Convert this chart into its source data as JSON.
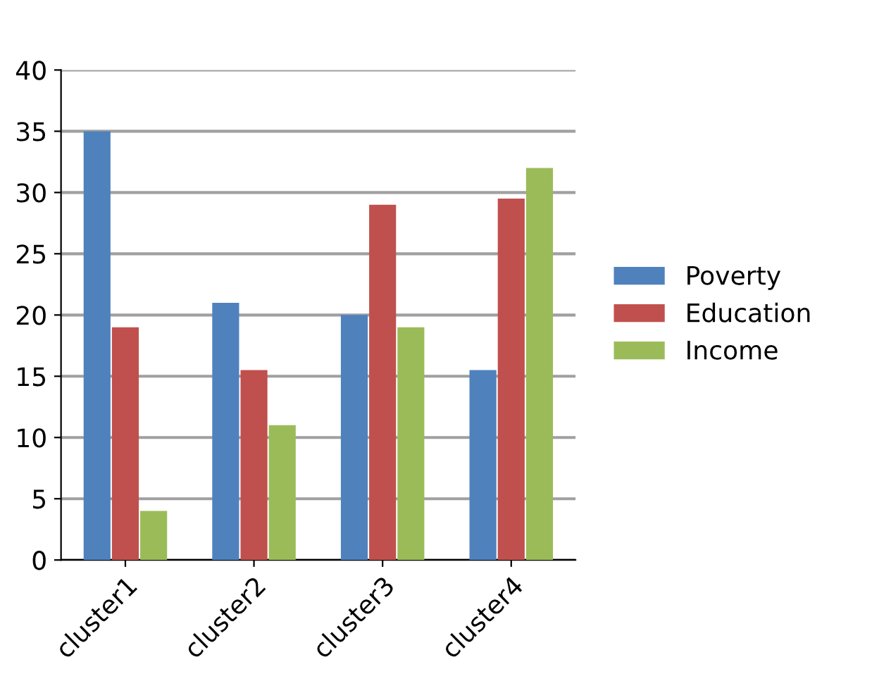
{
  "chart_data": {
    "type": "bar",
    "categories": [
      "cluster1",
      "cluster2",
      "cluster3",
      "cluster4"
    ],
    "series": [
      {
        "name": "Poverty",
        "color": "#4f81bd",
        "values": [
          35,
          21,
          20,
          15.5
        ]
      },
      {
        "name": "Education",
        "color": "#c0504d",
        "values": [
          19,
          15.5,
          29,
          29.5
        ]
      },
      {
        "name": "Income",
        "color": "#9bbb59",
        "values": [
          4,
          11,
          19,
          32
        ]
      }
    ],
    "ylim": [
      0,
      40
    ],
    "yticks": [
      0,
      5,
      10,
      15,
      20,
      25,
      30,
      35,
      40
    ],
    "grid": "y",
    "legend": "right"
  }
}
